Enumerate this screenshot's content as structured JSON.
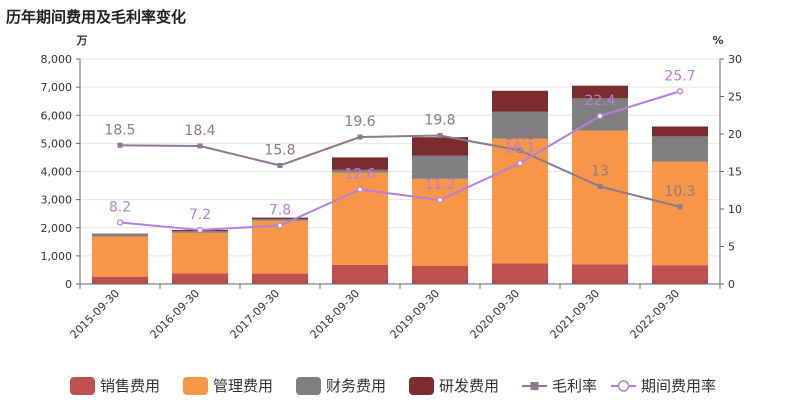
{
  "chart_data": {
    "type": "bar",
    "title": "历年期间费用及毛利率变化",
    "y_left_unit": "万",
    "y_right_unit": "%",
    "ylim_left": [
      0,
      8000
    ],
    "ylim_right": [
      0,
      30
    ],
    "y_left_ticks": [
      "0",
      "1,000",
      "2,000",
      "3,000",
      "4,000",
      "5,000",
      "6,000",
      "7,000",
      "8,000"
    ],
    "y_right_ticks": [
      "0",
      "5",
      "10",
      "15",
      "20",
      "25",
      "30"
    ],
    "categories": [
      "2015-09-30",
      "2016-09-30",
      "2017-09-30",
      "2018-09-30",
      "2019-09-30",
      "2020-09-30",
      "2021-09-30",
      "2022-09-30"
    ],
    "stacked": true,
    "series": [
      {
        "name": "销售费用",
        "kind": "bar",
        "axis": "left",
        "color": "#c0504d",
        "values": [
          260,
          380,
          370,
          680,
          640,
          730,
          700,
          670
        ]
      },
      {
        "name": "管理费用",
        "kind": "bar",
        "axis": "left",
        "color": "#f79646",
        "values": [
          1430,
          1440,
          1880,
          3280,
          3100,
          4440,
          4760,
          3680
        ]
      },
      {
        "name": "财务费用",
        "kind": "bar",
        "axis": "left",
        "color": "#7f7f7f",
        "values": [
          80,
          60,
          60,
          100,
          820,
          960,
          1140,
          900
        ]
      },
      {
        "name": "研发费用",
        "kind": "bar",
        "axis": "left",
        "color": "#7b2c2c",
        "values": [
          20,
          40,
          50,
          440,
          660,
          740,
          450,
          350
        ]
      },
      {
        "name": "毛利率",
        "kind": "line",
        "axis": "right",
        "color": "#8d7b8d",
        "marker": "square",
        "values": [
          18.5,
          18.4,
          15.8,
          19.6,
          19.8,
          17.8,
          13,
          10.3
        ],
        "labels": [
          "18.5",
          "18.4",
          "15.8",
          "19.6",
          "19.8",
          "17.8",
          "13",
          "10.3"
        ]
      },
      {
        "name": "期间费用率",
        "kind": "line",
        "axis": "right",
        "color": "#b57fe0",
        "marker": "circle",
        "values": [
          8.2,
          7.2,
          7.8,
          12.6,
          11.2,
          16.1,
          22.4,
          25.7
        ],
        "labels": [
          "8.2",
          "7.2",
          "7.8",
          "12.6",
          "11.2",
          "16.1",
          "22.4",
          "25.7"
        ]
      }
    ],
    "grid": "horizontal",
    "legend_position": "bottom"
  }
}
